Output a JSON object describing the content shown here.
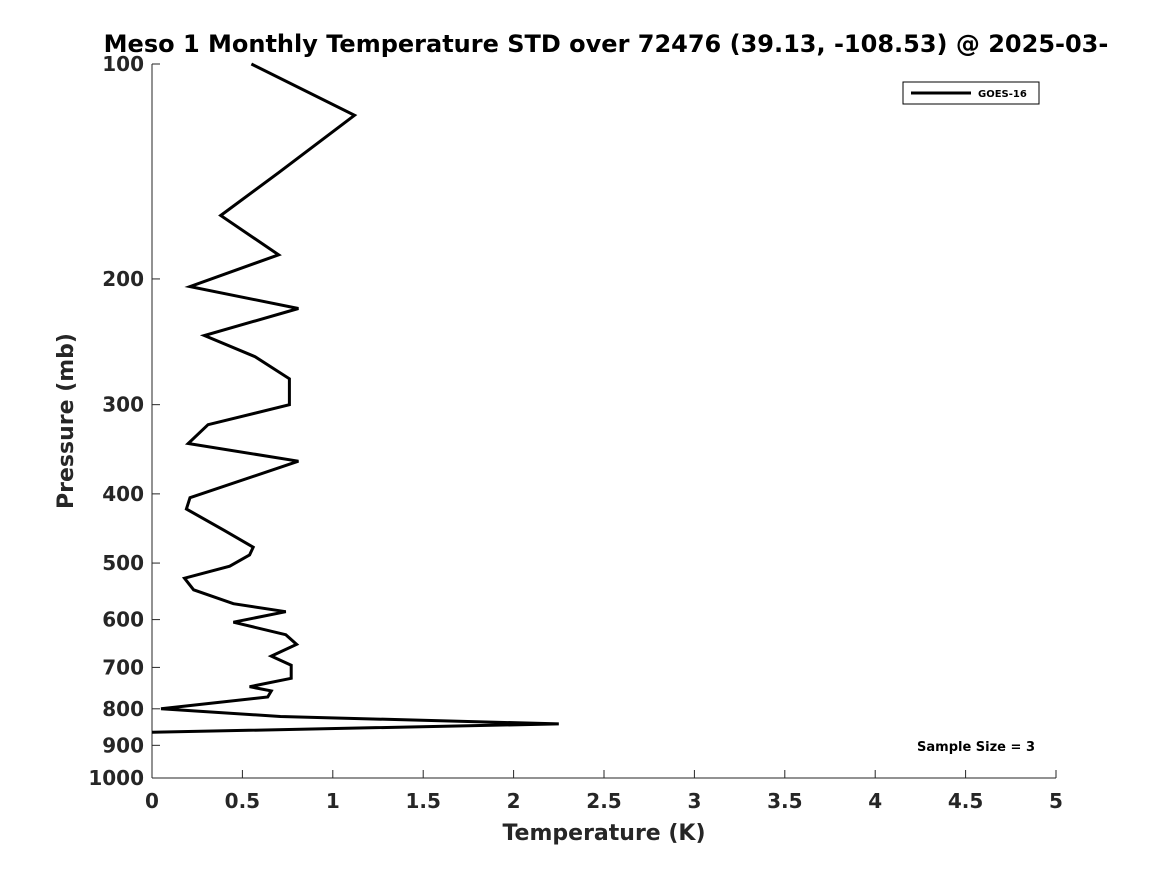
{
  "chart_data": {
    "type": "line",
    "title": "Meso 1 Monthly Temperature STD over 72476 (39.13, -108.53) @ 2025-03-",
    "xlabel": "Temperature (K)",
    "ylabel": "Pressure (mb)",
    "xlim": [
      0,
      5
    ],
    "ylim": [
      100,
      1000
    ],
    "y_scale": "log",
    "y_reversed": true,
    "grid": false,
    "x_ticks": [
      "0",
      "0.5",
      "1",
      "1.5",
      "2",
      "2.5",
      "3",
      "3.5",
      "4",
      "4.5",
      "5"
    ],
    "y_ticks": [
      "100",
      "200",
      "300",
      "400",
      "500",
      "600",
      "700",
      "800",
      "900",
      "1000"
    ],
    "legend": {
      "placement": "top-right",
      "entries": [
        "GOES-16"
      ]
    },
    "annotation": "Sample Size = 3",
    "series": [
      {
        "name": "GOES-16",
        "color": "#000000",
        "x": [
          0.55,
          1.12,
          0.7,
          0.38,
          0.7,
          0.21,
          0.81,
          0.29,
          0.57,
          0.76,
          0.76,
          0.31,
          0.2,
          0.81,
          0.21,
          0.19,
          0.4,
          0.56,
          0.54,
          0.43,
          0.18,
          0.23,
          0.45,
          0.74,
          0.45,
          0.74,
          0.8,
          0.66,
          0.77,
          0.77,
          0.54,
          0.66,
          0.64,
          0.05,
          0.71,
          2.25,
          0.0
        ],
        "y": [
          100,
          118,
          142,
          163,
          185,
          205,
          220,
          240,
          257,
          276,
          300,
          320,
          340,
          360,
          405,
          420,
          450,
          475,
          487,
          505,
          525,
          545,
          570,
          585,
          605,
          630,
          650,
          675,
          695,
          725,
          745,
          755,
          770,
          800,
          820,
          840,
          863
        ]
      }
    ]
  }
}
